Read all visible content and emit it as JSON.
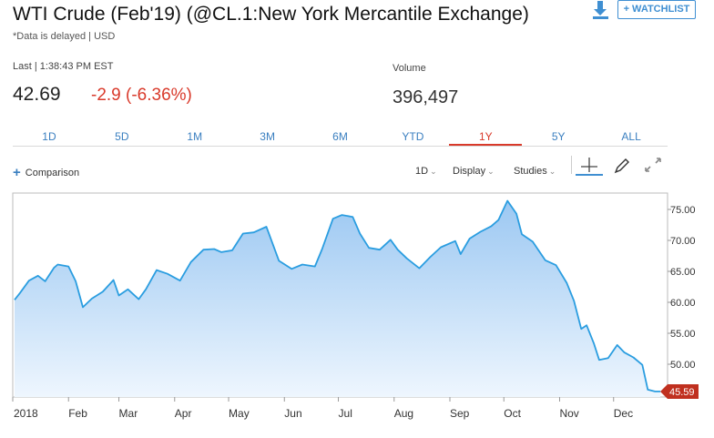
{
  "header": {
    "title": "WTI Crude (Feb'19) (@CL.1:New York Mercantile Exchange)",
    "delayed_note": "*Data is delayed | USD",
    "watchlist_label": "+ WATCHLIST",
    "download_icon": "download-icon"
  },
  "quote": {
    "last_label": "Last | 1:38:43 PM EST",
    "price": "42.69",
    "change": "-2.9 (-6.36%)",
    "volume_label": "Volume",
    "volume_value": "396,497"
  },
  "colors": {
    "accent": "#3f8fd2",
    "negative": "#d93a2b",
    "line": "#2a9de0",
    "fill_top": "#9cc8f2",
    "fill_bottom": "#eef6fe"
  },
  "ranges": {
    "tabs": [
      "1D",
      "5D",
      "1M",
      "3M",
      "6M",
      "YTD",
      "1Y",
      "5Y",
      "ALL"
    ],
    "active": "1Y"
  },
  "toolbar": {
    "comparison_label": "Comparison",
    "interval_label": "1D",
    "display_label": "Display",
    "studies_label": "Studies",
    "crosshair_icon": "crosshair-icon",
    "draw_icon": "pencil-icon",
    "fullscreen_icon": "expand-icon"
  },
  "chart_data": {
    "type": "area",
    "x_tick_labels": [
      "2018",
      "Feb",
      "Mar",
      "Apr",
      "May",
      "Jun",
      "Jul",
      "Aug",
      "Sep",
      "Oct",
      "Nov",
      "Dec"
    ],
    "y_tick_labels": [
      "75.00",
      "70.00",
      "65.00",
      "60.00",
      "55.00",
      "50.00"
    ],
    "ylim": [
      45,
      77.5
    ],
    "last_value_label": "45.59",
    "series": [
      {
        "x": [
          "2018-01-02",
          "2018-01-05",
          "2018-01-10",
          "2018-01-15",
          "2018-01-19",
          "2018-01-24",
          "2018-01-26",
          "2018-02-01",
          "2018-02-05",
          "2018-02-09",
          "2018-02-14",
          "2018-02-20",
          "2018-02-26",
          "2018-03-01",
          "2018-03-06",
          "2018-03-12",
          "2018-03-16",
          "2018-03-22",
          "2018-03-28",
          "2018-04-04",
          "2018-04-10",
          "2018-04-17",
          "2018-04-23",
          "2018-04-27",
          "2018-05-03",
          "2018-05-09",
          "2018-05-15",
          "2018-05-22",
          "2018-05-29",
          "2018-06-05",
          "2018-06-11",
          "2018-06-18",
          "2018-06-22",
          "2018-06-28",
          "2018-07-03",
          "2018-07-09",
          "2018-07-13",
          "2018-07-18",
          "2018-07-24",
          "2018-07-30",
          "2018-08-03",
          "2018-08-08",
          "2018-08-15",
          "2018-08-21",
          "2018-08-27",
          "2018-09-04",
          "2018-09-07",
          "2018-09-12",
          "2018-09-18",
          "2018-09-24",
          "2018-09-28",
          "2018-10-03",
          "2018-10-08",
          "2018-10-11",
          "2018-10-17",
          "2018-10-24",
          "2018-10-30",
          "2018-11-05",
          "2018-11-09",
          "2018-11-13",
          "2018-11-16",
          "2018-11-20",
          "2018-11-23",
          "2018-11-28",
          "2018-12-03",
          "2018-12-07",
          "2018-12-12",
          "2018-12-17",
          "2018-12-20",
          "2018-12-24",
          "2018-12-27"
        ],
        "y": [
          60.4,
          61.5,
          63.5,
          64.3,
          63.4,
          65.6,
          66.1,
          65.8,
          63.4,
          59.2,
          60.6,
          61.7,
          63.6,
          61.1,
          62.1,
          60.5,
          62.1,
          65.2,
          64.6,
          63.5,
          66.5,
          68.5,
          68.6,
          68.1,
          68.4,
          71.1,
          71.3,
          72.2,
          66.7,
          65.4,
          66.1,
          65.8,
          68.6,
          73.5,
          74.1,
          73.8,
          71.1,
          68.8,
          68.5,
          70.1,
          68.5,
          67.1,
          65.5,
          67.3,
          68.9,
          69.9,
          67.8,
          70.3,
          71.4,
          72.3,
          73.3,
          76.4,
          74.3,
          71.0,
          69.8,
          66.8,
          66.0,
          63.1,
          60.2,
          55.7,
          56.3,
          53.4,
          50.7,
          51.0,
          53.1,
          51.9,
          51.1,
          49.9,
          45.9,
          45.6,
          45.6
        ],
        "last": 45.59
      }
    ]
  }
}
